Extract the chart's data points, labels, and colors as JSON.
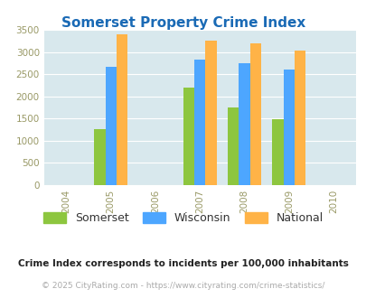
{
  "title": "Somerset Property Crime Index",
  "all_years": [
    2004,
    2005,
    2006,
    2007,
    2008,
    2009,
    2010
  ],
  "data_years": [
    2005,
    2007,
    2008,
    2009
  ],
  "somerset": [
    1250,
    2200,
    1750,
    1490
  ],
  "wisconsin": [
    2670,
    2830,
    2750,
    2610
  ],
  "national": [
    3400,
    3260,
    3200,
    3030
  ],
  "somerset_color": "#8dc63f",
  "wisconsin_color": "#4da6ff",
  "national_color": "#ffb347",
  "bg_color": "#d8e8ed",
  "title_color": "#1a6ab5",
  "tick_color": "#999966",
  "ylim": [
    0,
    3500
  ],
  "yticks": [
    0,
    500,
    1000,
    1500,
    2000,
    2500,
    3000,
    3500
  ],
  "bar_width": 0.25,
  "legend_labels": [
    "Somerset",
    "Wisconsin",
    "National"
  ],
  "footnote1": "Crime Index corresponds to incidents per 100,000 inhabitants",
  "footnote2": "© 2025 CityRating.com - https://www.cityrating.com/crime-statistics/"
}
